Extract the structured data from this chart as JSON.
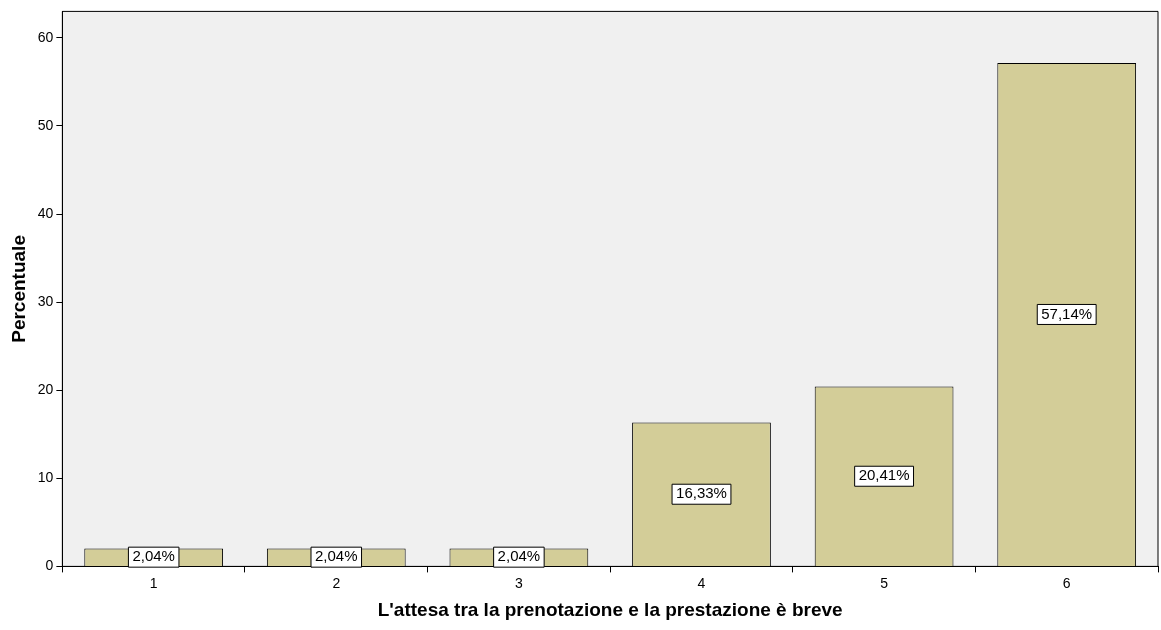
{
  "chart_data": {
    "type": "bar",
    "xlabel": "L'attesa tra la prenotazione e la prestazione è breve",
    "ylabel": "Percentuale",
    "categories": [
      "1",
      "2",
      "3",
      "4",
      "5",
      "6"
    ],
    "values": [
      2.04,
      2.04,
      2.04,
      16.33,
      20.41,
      57.14
    ],
    "value_labels": [
      "2,04%",
      "2,04%",
      "2,04%",
      "16,33%",
      "20,41%",
      "57,14%"
    ],
    "color": "#d3cd98",
    "ylim": [
      0,
      63
    ],
    "yticks": [
      0,
      10,
      20,
      30,
      40,
      50,
      60
    ],
    "grid": false,
    "legend": false
  }
}
